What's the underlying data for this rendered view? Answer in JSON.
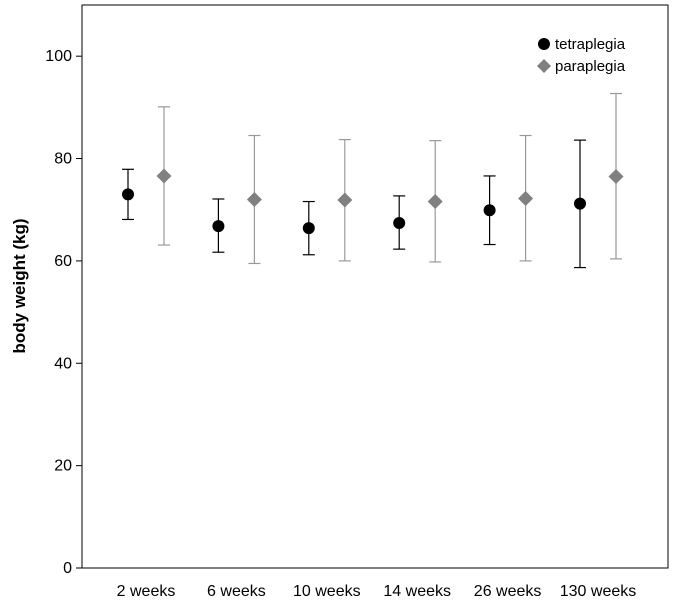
{
  "chart_data": {
    "type": "scatter",
    "title": "",
    "xlabel": "",
    "ylabel": "body weight (kg)",
    "ylim": [
      0,
      110
    ],
    "yticks": [
      0,
      20,
      40,
      60,
      80,
      100
    ],
    "categories": [
      "2 weeks",
      "6 weeks",
      "10 weeks",
      "14 weeks",
      "26 weeks",
      "130 weeks"
    ],
    "legend_position": "top-right",
    "grid": false,
    "series": [
      {
        "name": "tetraplegia",
        "marker": "circle",
        "color": "#000000",
        "errorbar_color": "#000000",
        "values": [
          73.0,
          66.8,
          66.4,
          67.4,
          69.9,
          71.2
        ],
        "lower": [
          68.1,
          61.7,
          61.2,
          62.3,
          63.2,
          58.7
        ],
        "upper": [
          77.9,
          72.1,
          71.6,
          72.7,
          76.6,
          83.6
        ]
      },
      {
        "name": "paraplegia",
        "marker": "diamond",
        "color": "#808080",
        "errorbar_color": "#999999",
        "values": [
          76.6,
          72.0,
          71.9,
          71.6,
          72.2,
          76.5
        ],
        "lower": [
          63.1,
          59.5,
          60.0,
          59.8,
          60.0,
          60.4
        ],
        "upper": [
          90.1,
          84.5,
          83.7,
          83.5,
          84.5,
          92.7
        ]
      }
    ]
  }
}
